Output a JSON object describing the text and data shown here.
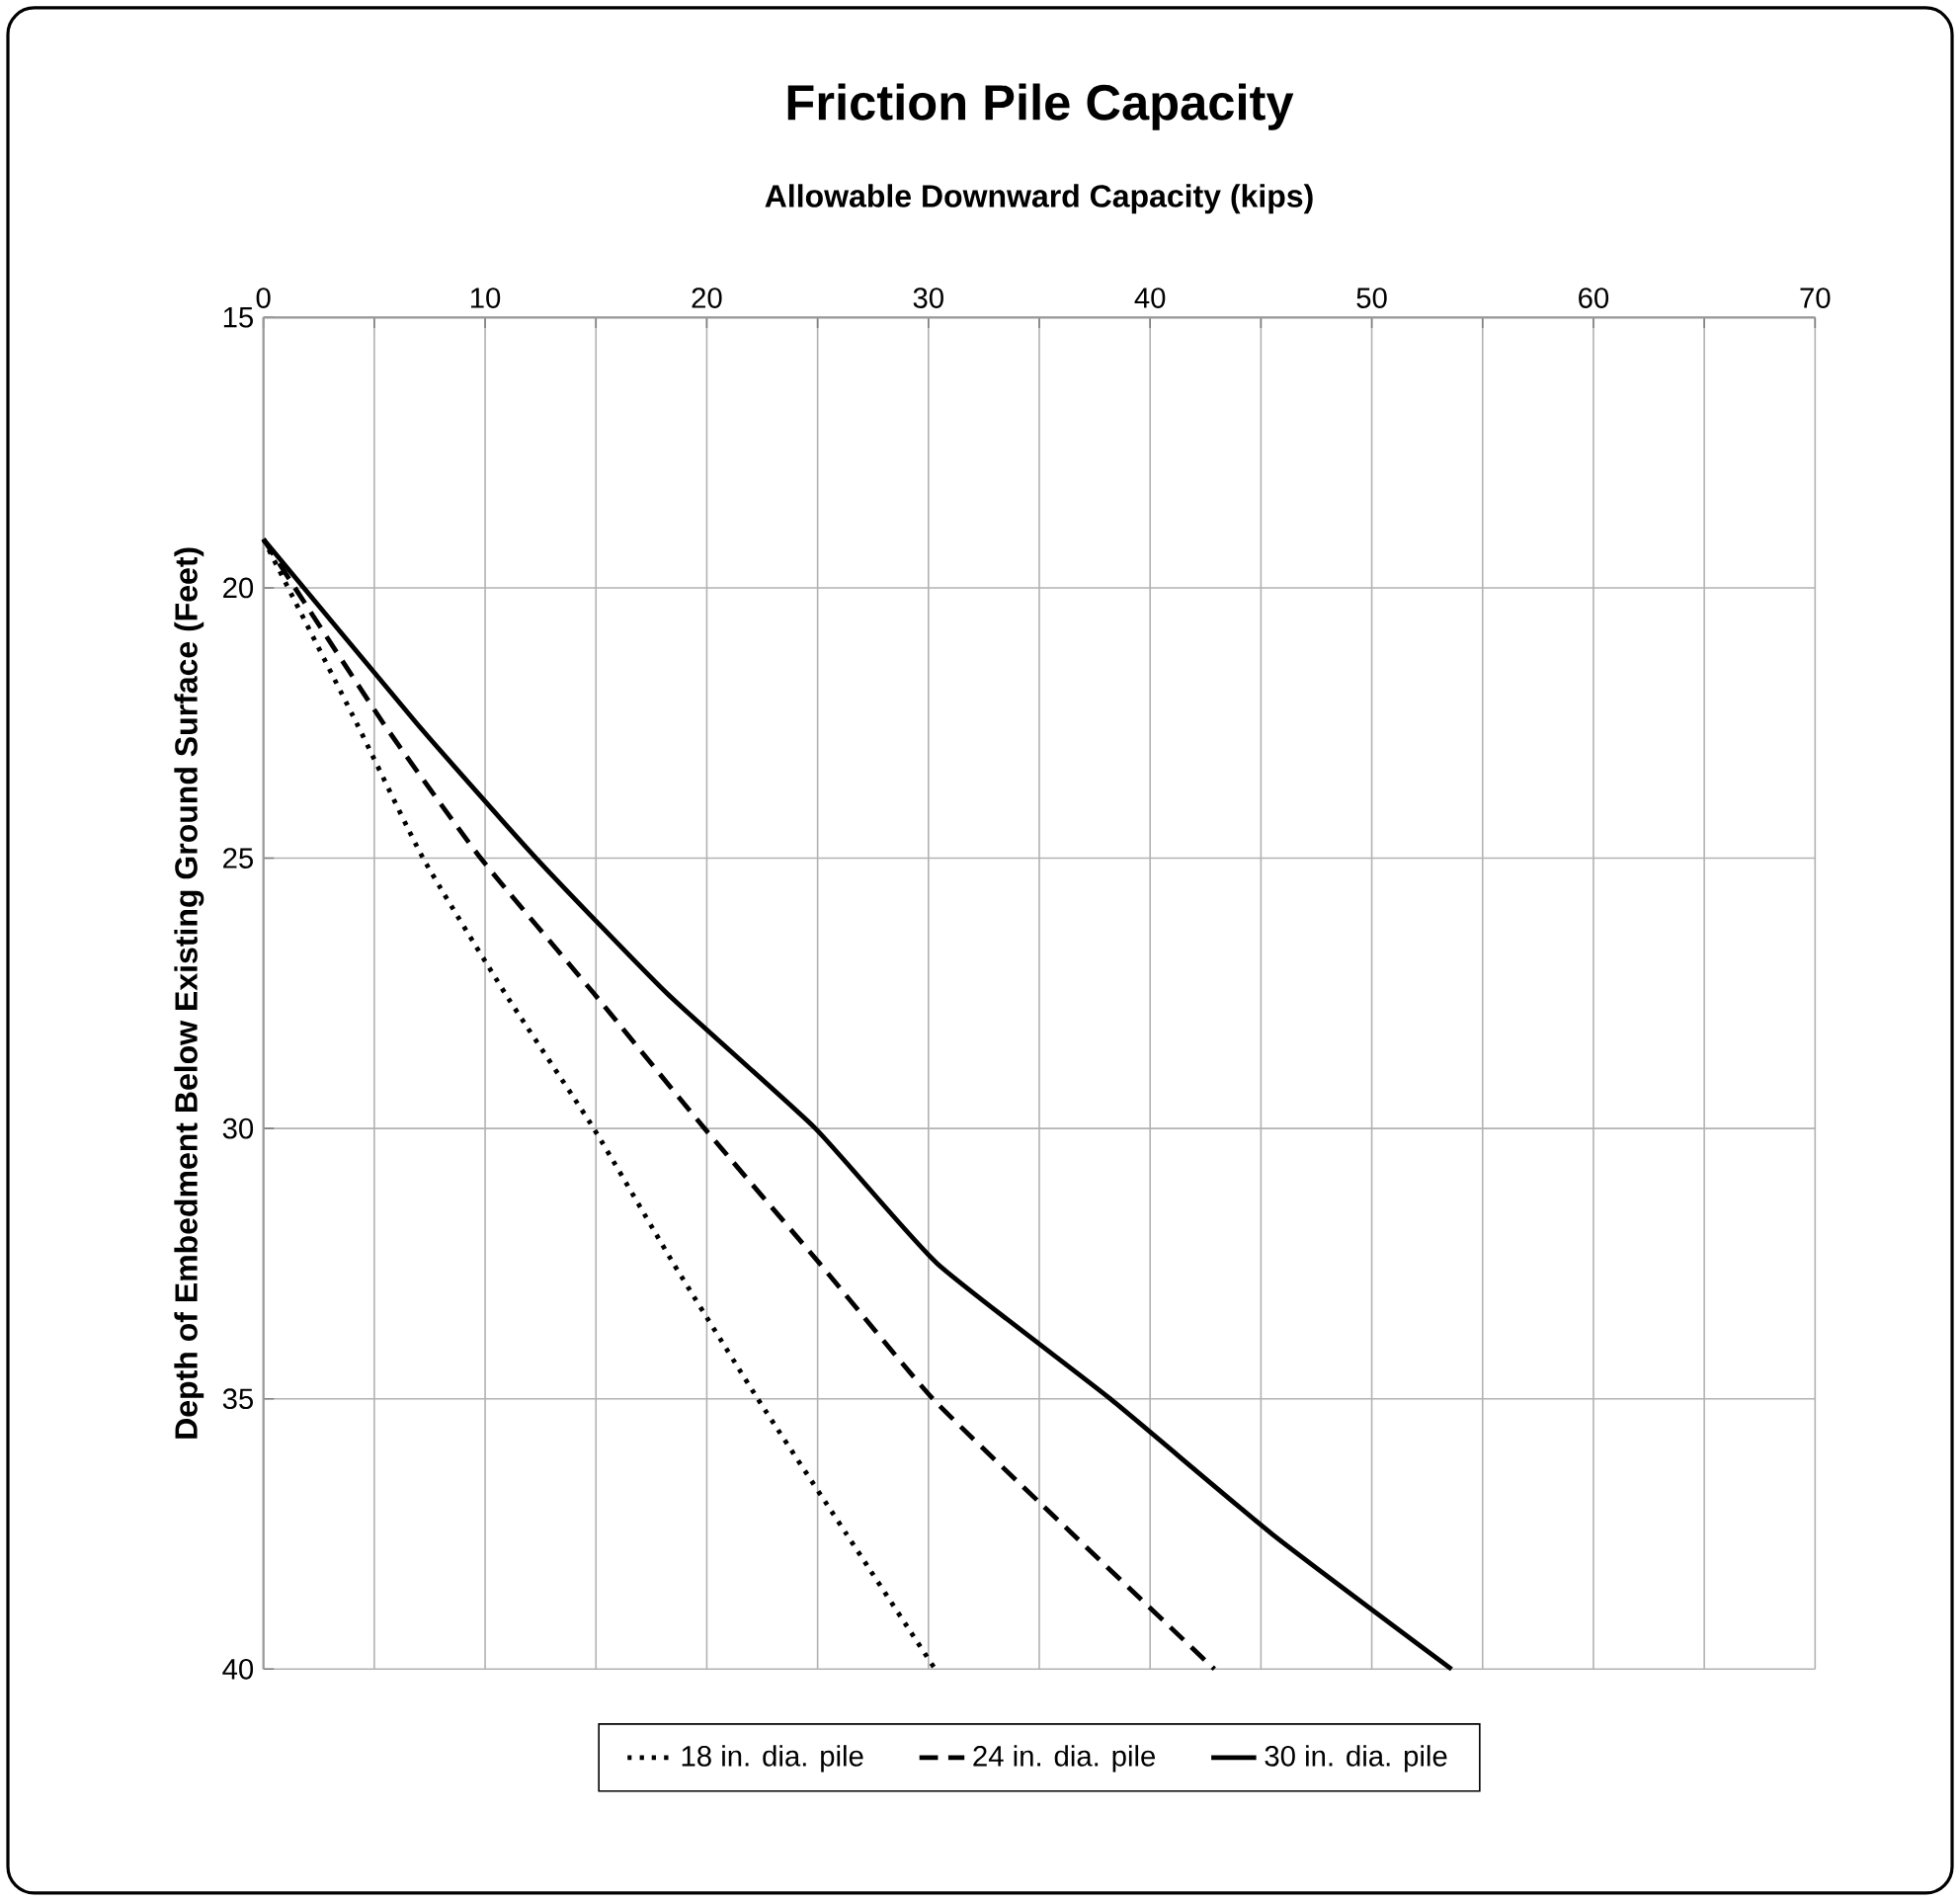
{
  "chart_data": {
    "type": "line",
    "title": "Friction Pile Capacity",
    "xlabel": "Allowable  Downward Capacity  (kips)",
    "ylabel": "Depth of Embedment Below Existing Ground Surface (Feet)",
    "xlim": [
      0,
      70
    ],
    "xticks": [
      0,
      {
        "value": 5,
        "label": null
      },
      10,
      {
        "value": 15,
        "label": null
      },
      20,
      {
        "value": 25,
        "label": null
      },
      30,
      {
        "value": 35,
        "label": null
      },
      40,
      {
        "value": 45,
        "label": null
      },
      50,
      {
        "value": 55,
        "label": null
      },
      60,
      {
        "value": 65,
        "label": null
      },
      70
    ],
    "ylim": [
      40,
      15
    ],
    "yticks": [
      15,
      20,
      25,
      30,
      35,
      40
    ],
    "grid": true,
    "legend": "bottom",
    "marker": "none",
    "series": [
      {
        "name": "18  in. dia. pile",
        "color": "#000000",
        "line_style": "dotted",
        "x": [
          0,
          4.2,
          7.2,
          10.9,
          14.9,
          18.5,
          22.3,
          26.3,
          30.3
        ],
        "values": [
          19.1,
          22.5,
          25,
          27.5,
          30,
          32.5,
          35,
          37.5,
          40
        ]
      },
      {
        "name": "24  in. dia. pile",
        "color": "#000000",
        "line_style": "dashed",
        "x": [
          0,
          5.4,
          9.8,
          14.9,
          19.9,
          25.1,
          30.2,
          36.5,
          42.9
        ],
        "values": [
          19.1,
          22.5,
          25,
          27.5,
          30,
          32.5,
          35,
          37.5,
          40
        ]
      },
      {
        "name": "30  in. dia. pile",
        "color": "#000000",
        "line_style": "solid",
        "x": [
          0,
          6.9,
          12.3,
          18.2,
          24.9,
          30.4,
          38.2,
          45.5,
          53.6
        ],
        "values": [
          19.1,
          22.5,
          25,
          27.5,
          30,
          32.5,
          35,
          37.5,
          40
        ]
      }
    ]
  }
}
